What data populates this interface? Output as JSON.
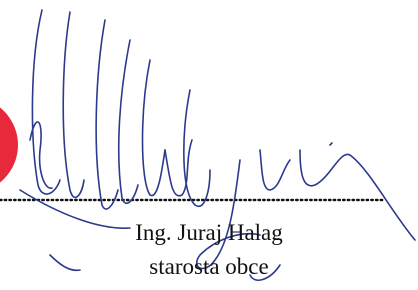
{
  "signature": {
    "name": "Ing. Juraj Halag",
    "title": "starosta obce"
  }
}
